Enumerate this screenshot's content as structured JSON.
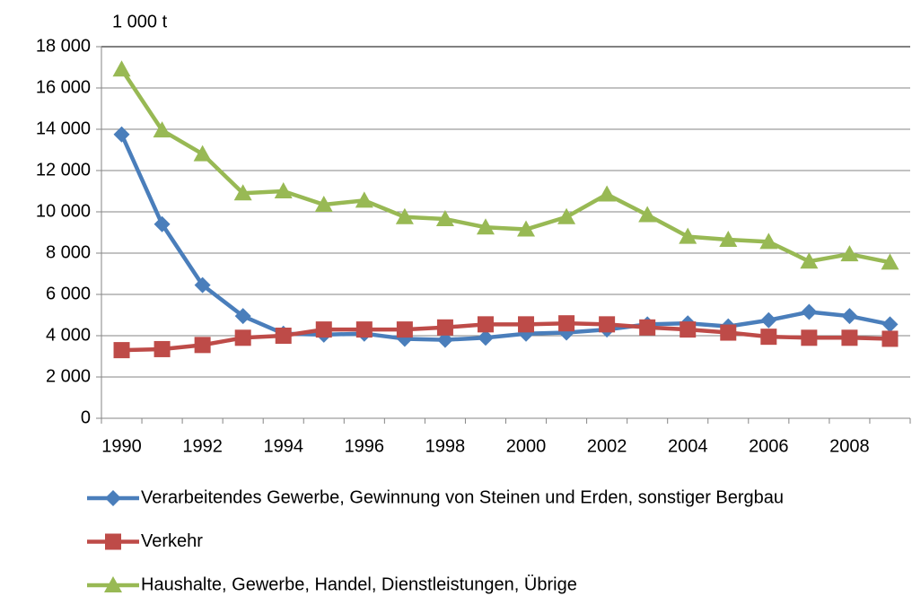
{
  "chart_data": {
    "type": "line",
    "unit_label": "1 000 t",
    "categories": [
      "1990",
      null,
      "1992",
      null,
      "1994",
      null,
      "1996",
      null,
      "1998",
      null,
      "2000",
      null,
      "2002",
      null,
      "2004",
      null,
      "2006",
      null,
      "2008",
      null
    ],
    "series": [
      {
        "name": "Verarbeitendes Gewerbe, Gewinnung von Steinen und Erden, sonstiger Bergbau",
        "color": "#4a7ebb",
        "marker": "diamond",
        "values": [
          13750,
          9400,
          6450,
          4950,
          4100,
          4050,
          4100,
          3850,
          3800,
          3900,
          4100,
          4150,
          4300,
          4550,
          4600,
          4450,
          4750,
          5150,
          4950,
          4550
        ]
      },
      {
        "name": "Verkehr",
        "color": "#be4b48",
        "marker": "square",
        "values": [
          3300,
          3350,
          3550,
          3900,
          4000,
          4300,
          4300,
          4300,
          4400,
          4550,
          4550,
          4600,
          4550,
          4400,
          4300,
          4150,
          3950,
          3900,
          3900,
          3850
        ]
      },
      {
        "name": "Haushalte, Gewerbe, Handel, Dienstleistungen, Übrige",
        "color": "#98b954",
        "marker": "triangle",
        "values": [
          16900,
          13950,
          12800,
          10900,
          11000,
          10350,
          10550,
          9750,
          9650,
          9250,
          9150,
          9750,
          10850,
          9850,
          8800,
          8650,
          8550,
          7600,
          7950,
          7550
        ]
      }
    ],
    "ylim": [
      0,
      18000
    ],
    "yticks": [
      0,
      {
        "value": 2000,
        "label": "2 000"
      },
      {
        "value": 4000,
        "label": "4 000"
      },
      {
        "value": 6000,
        "label": "6 000"
      },
      {
        "value": 8000,
        "label": "8 000"
      },
      {
        "value": 10000,
        "label": "10 000"
      },
      {
        "value": 12000,
        "label": "12 000"
      },
      {
        "value": 14000,
        "label": "14 000"
      },
      {
        "value": 16000,
        "label": "16 000"
      },
      {
        "value": 18000,
        "label": "18 000"
      }
    ],
    "grid": true
  }
}
